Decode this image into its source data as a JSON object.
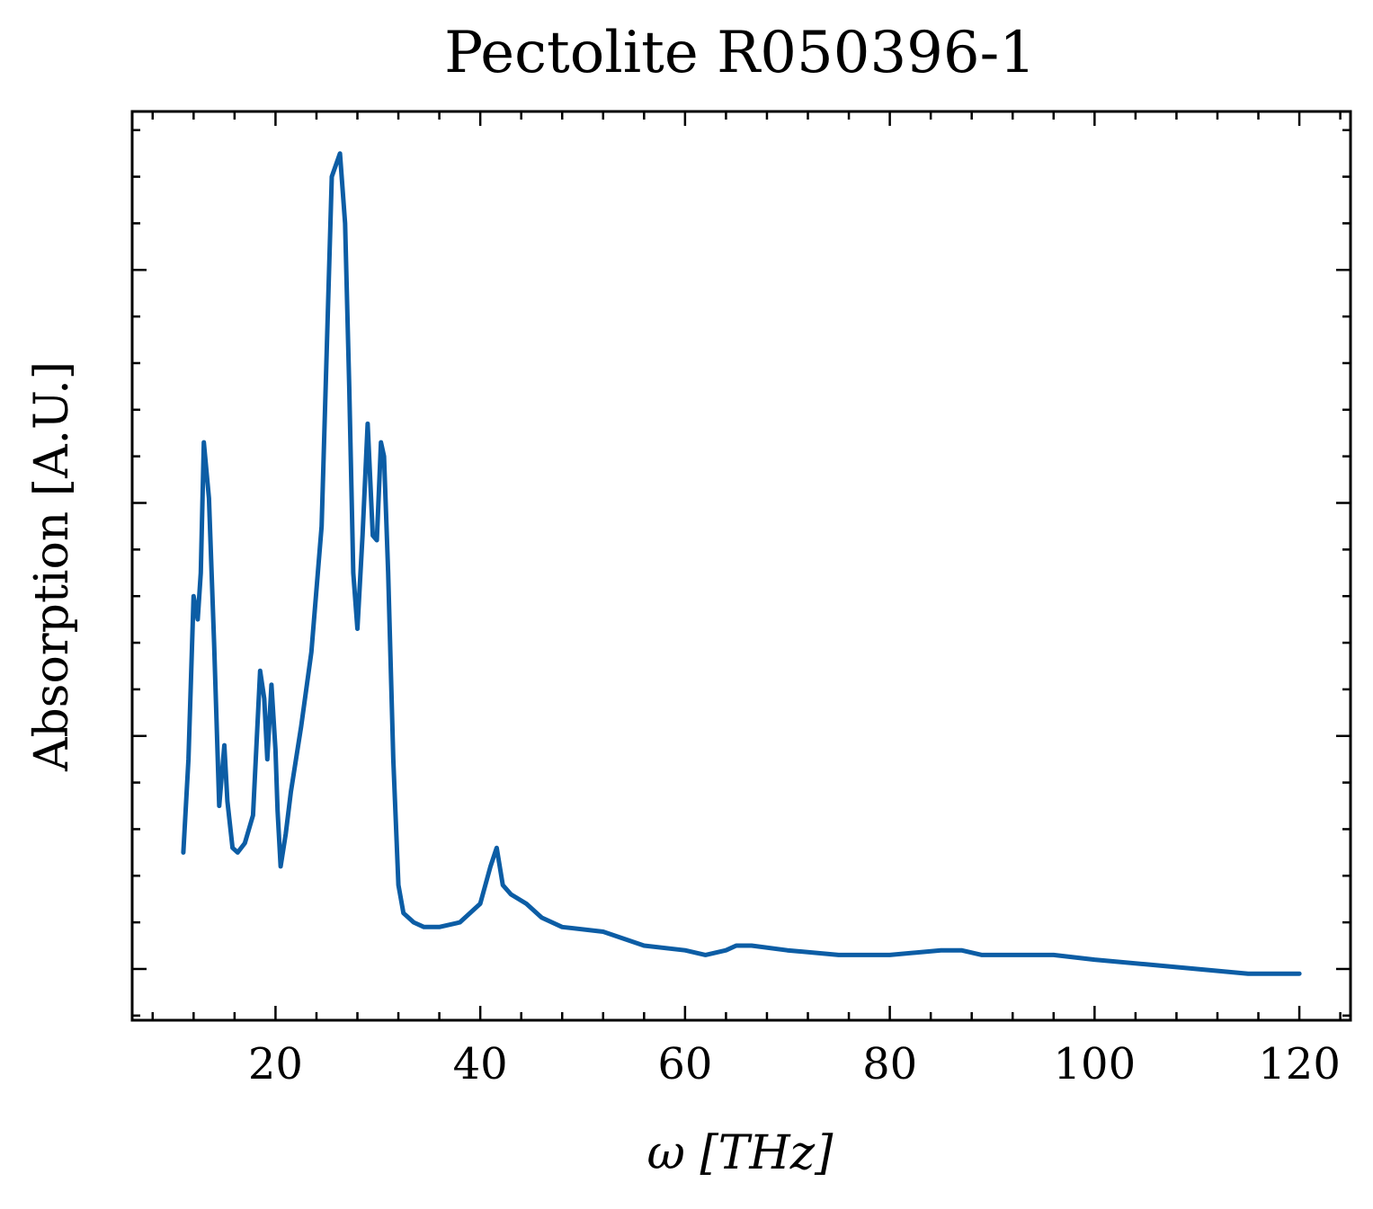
{
  "chart_data": {
    "type": "line",
    "title": "Pectolite R050396-1",
    "xlabel": "ω [THz]",
    "ylabel": "Absorption [A.U.]",
    "xlim": [
      6,
      125
    ],
    "ylim": [
      -0.11,
      1.84
    ],
    "x_ticks": [
      20,
      40,
      60,
      80,
      100,
      120
    ],
    "x_tick_labels": [
      "20",
      "40",
      "60",
      "80",
      "100",
      "120"
    ],
    "x_minor_step": 4,
    "y_major_ticks": [
      0,
      0.5,
      1.0,
      1.5
    ],
    "y_minor_step": 0.1,
    "y_tick_labels_shown": false,
    "grid": false,
    "line_color": "#0c5da5",
    "series": [
      {
        "x": [
          11.0,
          11.5,
          12.0,
          12.4,
          12.7,
          13.0,
          13.5,
          14.0,
          14.5,
          15.0,
          15.3,
          15.8,
          16.3,
          17.0,
          17.8,
          18.5,
          18.9,
          19.2,
          19.6,
          20.0,
          20.2,
          20.5,
          21.0,
          21.5,
          22.5,
          23.5,
          24.5,
          25.5,
          26.3,
          26.8,
          27.2,
          27.6,
          28.0,
          28.5,
          29.0,
          29.5,
          29.9,
          30.3,
          30.6,
          31.0,
          31.5,
          32.0,
          32.5,
          33.5,
          34.5,
          36.0,
          38.0,
          40.0,
          41.0,
          41.6,
          42.2,
          43.0,
          44.5,
          46.0,
          48.0,
          52.0,
          56.0,
          60.0,
          62.0,
          64.0,
          65.0,
          66.5,
          70.0,
          75.0,
          80.0,
          85.0,
          87.0,
          89.0,
          92.0,
          96.0,
          100.0,
          105.0,
          110.0,
          115.0,
          120.0
        ],
        "y": [
          0.25,
          0.45,
          0.8,
          0.75,
          0.85,
          1.13,
          1.01,
          0.7,
          0.35,
          0.48,
          0.36,
          0.26,
          0.25,
          0.27,
          0.33,
          0.64,
          0.58,
          0.45,
          0.61,
          0.47,
          0.34,
          0.22,
          0.29,
          0.38,
          0.52,
          0.68,
          0.95,
          1.7,
          1.75,
          1.6,
          1.25,
          0.85,
          0.73,
          0.93,
          1.17,
          0.93,
          0.92,
          1.13,
          1.1,
          0.85,
          0.45,
          0.18,
          0.12,
          0.1,
          0.09,
          0.09,
          0.1,
          0.14,
          0.22,
          0.26,
          0.18,
          0.16,
          0.14,
          0.11,
          0.09,
          0.08,
          0.05,
          0.04,
          0.03,
          0.04,
          0.05,
          0.05,
          0.04,
          0.03,
          0.03,
          0.04,
          0.04,
          0.03,
          0.03,
          0.03,
          0.02,
          0.01,
          0.0,
          -0.01,
          -0.01
        ]
      }
    ]
  }
}
